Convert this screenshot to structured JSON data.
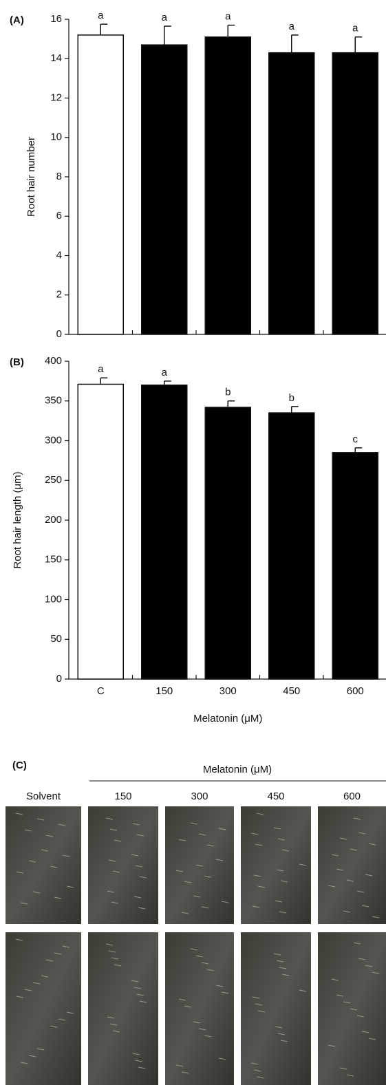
{
  "chart_data": [
    {
      "type": "bar",
      "panel_label": "(A)",
      "y_label": "Root hair number",
      "categories": [
        null,
        null,
        null,
        null,
        null
      ],
      "values": [
        15.2,
        14.7,
        15.1,
        14.3,
        14.3
      ],
      "errors": [
        0.55,
        0.95,
        0.6,
        0.9,
        0.8
      ],
      "significance_letters": [
        "a",
        "a",
        "a",
        "a",
        "a"
      ],
      "colors": [
        "#ffffff",
        "#000000",
        "#000000",
        "#000000",
        "#000000"
      ],
      "ylim": [
        0,
        16
      ],
      "yticks": [
        0,
        2,
        4,
        6,
        8,
        10,
        12,
        14,
        16
      ]
    },
    {
      "type": "bar",
      "panel_label": "(B)",
      "y_label": "Root hair length (μm)",
      "x_label": "Melatonin (μM)",
      "categories": [
        "C",
        "150",
        "300",
        "450",
        "600"
      ],
      "values": [
        371,
        370,
        342,
        335,
        285
      ],
      "errors": [
        8,
        5,
        8,
        8,
        6
      ],
      "significance_letters": [
        "a",
        "a",
        "b",
        "b",
        "c"
      ],
      "colors": [
        "#ffffff",
        "#000000",
        "#000000",
        "#000000",
        "#000000"
      ],
      "ylim": [
        0,
        400
      ],
      "yticks": [
        0,
        50,
        100,
        150,
        200,
        250,
        300,
        350,
        400
      ]
    }
  ],
  "photo_panel": {
    "panel_label": "(C)",
    "title": "Melatonin (μM)",
    "columns": [
      "Solvent",
      "150",
      "300",
      "450",
      "600"
    ]
  }
}
